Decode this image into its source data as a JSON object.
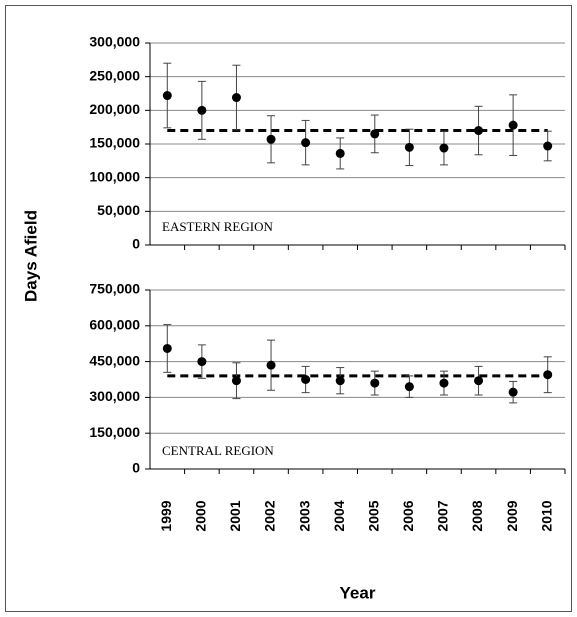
{
  "chart_data": [
    {
      "type": "errorbar",
      "annotation": "EASTERN REGION",
      "y_label": "Days Afield",
      "color": "#000000",
      "values": [
        222000,
        200000,
        219000,
        157000,
        152000,
        136000,
        165000,
        145000,
        144000,
        170000,
        178000,
        147000
      ],
      "errors": [
        48000,
        43000,
        48000,
        35000,
        33000,
        23000,
        28000,
        27000,
        25000,
        36000,
        45000,
        22000
      ],
      "mean": 170000,
      "ylim": [
        0,
        300000
      ],
      "yticks": [
        0,
        {
          "value": 50000,
          "label": "50,000"
        },
        {
          "value": 100000,
          "label": "100,000"
        },
        {
          "value": 150000,
          "label": "150,000"
        },
        {
          "value": 200000,
          "label": "200,000"
        },
        {
          "value": 250000,
          "label": "250,000"
        },
        {
          "value": 300000,
          "label": "300,000"
        }
      ],
      "grid": true
    },
    {
      "type": "errorbar",
      "annotation": "CENTRAL REGION",
      "x_label": "Year",
      "color": "#000000",
      "categories": [
        "1999",
        "2000",
        "2001",
        "2002",
        "2003",
        "2004",
        "2005",
        "2006",
        "2007",
        "2008",
        "2009",
        "2010"
      ],
      "values": [
        505000,
        450000,
        370000,
        435000,
        375000,
        370000,
        360000,
        345000,
        360000,
        370000,
        322000,
        395000
      ],
      "errors": [
        100000,
        70000,
        75000,
        105000,
        55000,
        55000,
        50000,
        45000,
        50000,
        60000,
        45000,
        75000
      ],
      "mean": 390000,
      "ylim": [
        0,
        750000
      ],
      "yticks": [
        0,
        {
          "value": 150000,
          "label": "150,000"
        },
        {
          "value": 300000,
          "label": "300,000"
        },
        {
          "value": 450000,
          "label": "450,000"
        },
        {
          "value": 600000,
          "label": "600,000"
        },
        {
          "value": 750000,
          "label": "750,000"
        }
      ],
      "grid": true
    }
  ]
}
